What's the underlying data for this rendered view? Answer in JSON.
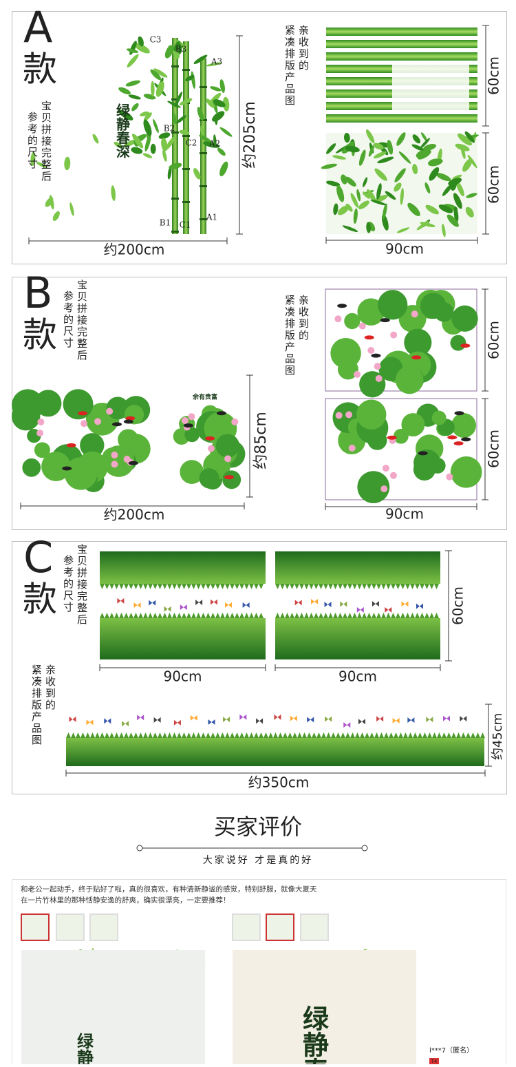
{
  "panels": [
    {
      "letter": "A",
      "word": "款",
      "note": [
        "宝贝拼接完整后",
        "参考的尺寸"
      ],
      "layout_note": [
        "亲收到的",
        "紧凑排版产品图"
      ],
      "width": "约200cm",
      "height": "约205cm",
      "piece_width": "90cm",
      "piece_heights": [
        "60cm",
        "60cm"
      ],
      "part_labels": [
        "C3",
        "B3",
        "A3",
        "B2",
        "C2",
        "A2",
        "B1",
        "C1",
        "A1"
      ],
      "art_text": "绿静春深"
    },
    {
      "letter": "B",
      "word": "款",
      "note": [
        "宝贝拼接完整后",
        "参考的尺寸"
      ],
      "layout_note": [
        "亲收到的",
        "紧凑排版产品图"
      ],
      "width": "约200cm",
      "height": "约85cm",
      "piece_width": "90cm",
      "piece_heights": [
        "60cm",
        "60cm"
      ],
      "art_text": "余有贵富"
    },
    {
      "letter": "C",
      "word": "款",
      "note": [
        "宝贝拼接完整后",
        "参考的尺寸"
      ],
      "layout_note": [
        "亲收到的",
        "紧凑排版产品图"
      ],
      "piece_widths": [
        "90cm",
        "90cm"
      ],
      "piece_height": "60cm",
      "width": "约350cm",
      "height": "约45cm"
    }
  ],
  "reviews": {
    "title": "买家评价",
    "subtitle": "大家说好 才是真的好",
    "text": "和老公一起动手，终于贴好了啦，真的很喜欢，有种清新静谧的感觉，特别舒服，就像大夏天在一片竹林里的那种恬静安逸的舒爽，确实很漂亮，一定要推荐！",
    "user": "l***7（匿名）",
    "badge": "T4",
    "photo_text": [
      "绿静春",
      "绿静春"
    ]
  }
}
